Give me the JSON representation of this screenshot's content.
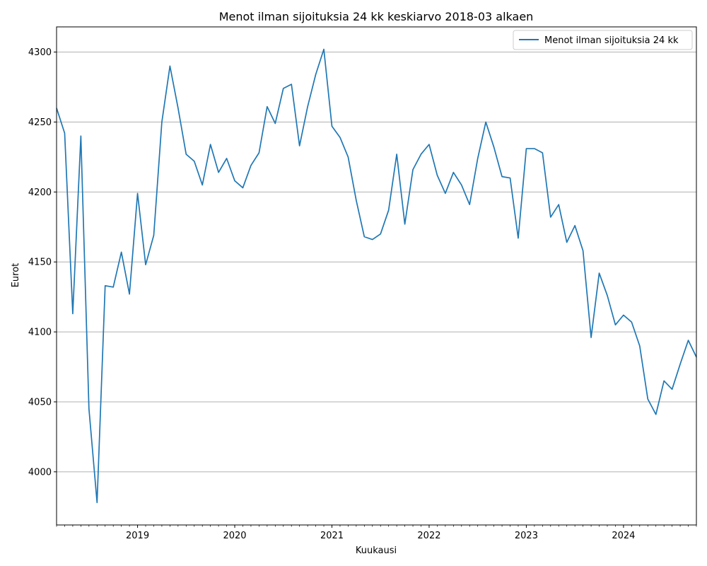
{
  "chart_data": {
    "type": "line",
    "title": "Menot ilman sijoituksia 24 kk keskiarvo 2018-03 alkaen",
    "xlabel": "Kuukausi",
    "ylabel": "Eurot",
    "xlim": [
      "2018-03",
      "2024-10"
    ],
    "ylim": [
      3962,
      4318
    ],
    "yticks": [
      4000,
      4050,
      4100,
      4150,
      4200,
      4250,
      4300
    ],
    "xticks": [
      "2019",
      "2020",
      "2021",
      "2022",
      "2023",
      "2024"
    ],
    "grid": "horizontal",
    "legend": "top-right",
    "colors": {
      "line": "#1f77b4",
      "grid": "#b0b0b0"
    },
    "series": [
      {
        "name": "Menot ilman sijoituksia 24 kk",
        "x": [
          "2018-03",
          "2018-04",
          "2018-05",
          "2018-06",
          "2018-07",
          "2018-08",
          "2018-09",
          "2018-10",
          "2018-11",
          "2018-12",
          "2019-01",
          "2019-02",
          "2019-03",
          "2019-04",
          "2019-05",
          "2019-06",
          "2019-07",
          "2019-08",
          "2019-09",
          "2019-10",
          "2019-11",
          "2019-12",
          "2020-01",
          "2020-02",
          "2020-03",
          "2020-04",
          "2020-05",
          "2020-06",
          "2020-07",
          "2020-08",
          "2020-09",
          "2020-10",
          "2020-11",
          "2020-12",
          "2021-01",
          "2021-02",
          "2021-03",
          "2021-04",
          "2021-05",
          "2021-06",
          "2021-07",
          "2021-08",
          "2021-09",
          "2021-10",
          "2021-11",
          "2021-12",
          "2022-01",
          "2022-02",
          "2022-03",
          "2022-04",
          "2022-05",
          "2022-06",
          "2022-07",
          "2022-08",
          "2022-09",
          "2022-10",
          "2022-11",
          "2022-12",
          "2023-01",
          "2023-02",
          "2023-03",
          "2023-04",
          "2023-05",
          "2023-06",
          "2023-07",
          "2023-08",
          "2023-09",
          "2023-10",
          "2023-11",
          "2023-12",
          "2024-01",
          "2024-02",
          "2024-03",
          "2024-04",
          "2024-05",
          "2024-06",
          "2024-07",
          "2024-08",
          "2024-09",
          "2024-10"
        ],
        "values": [
          4260,
          4242,
          4113,
          4240,
          4045,
          3978,
          4133,
          4132,
          4157,
          4127,
          4199,
          4148,
          4169,
          4250,
          4290,
          4260,
          4227,
          4222,
          4205,
          4234,
          4214,
          4224,
          4208,
          4203,
          4219,
          4228,
          4261,
          4249,
          4274,
          4277,
          4233,
          4261,
          4284,
          4302,
          4247,
          4239,
          4225,
          4194,
          4168,
          4166,
          4170,
          4187,
          4227,
          4177,
          4216,
          4227,
          4234,
          4212,
          4199,
          4214,
          4205,
          4191,
          4224,
          4250,
          4232,
          4211,
          4210,
          4167,
          4231,
          4231,
          4228,
          4182,
          4191,
          4164,
          4176,
          4158,
          4096,
          4142,
          4126,
          4105,
          4112,
          4107,
          4090,
          4052,
          4041,
          4065,
          4059,
          4077,
          4094,
          4082
        ]
      }
    ]
  }
}
